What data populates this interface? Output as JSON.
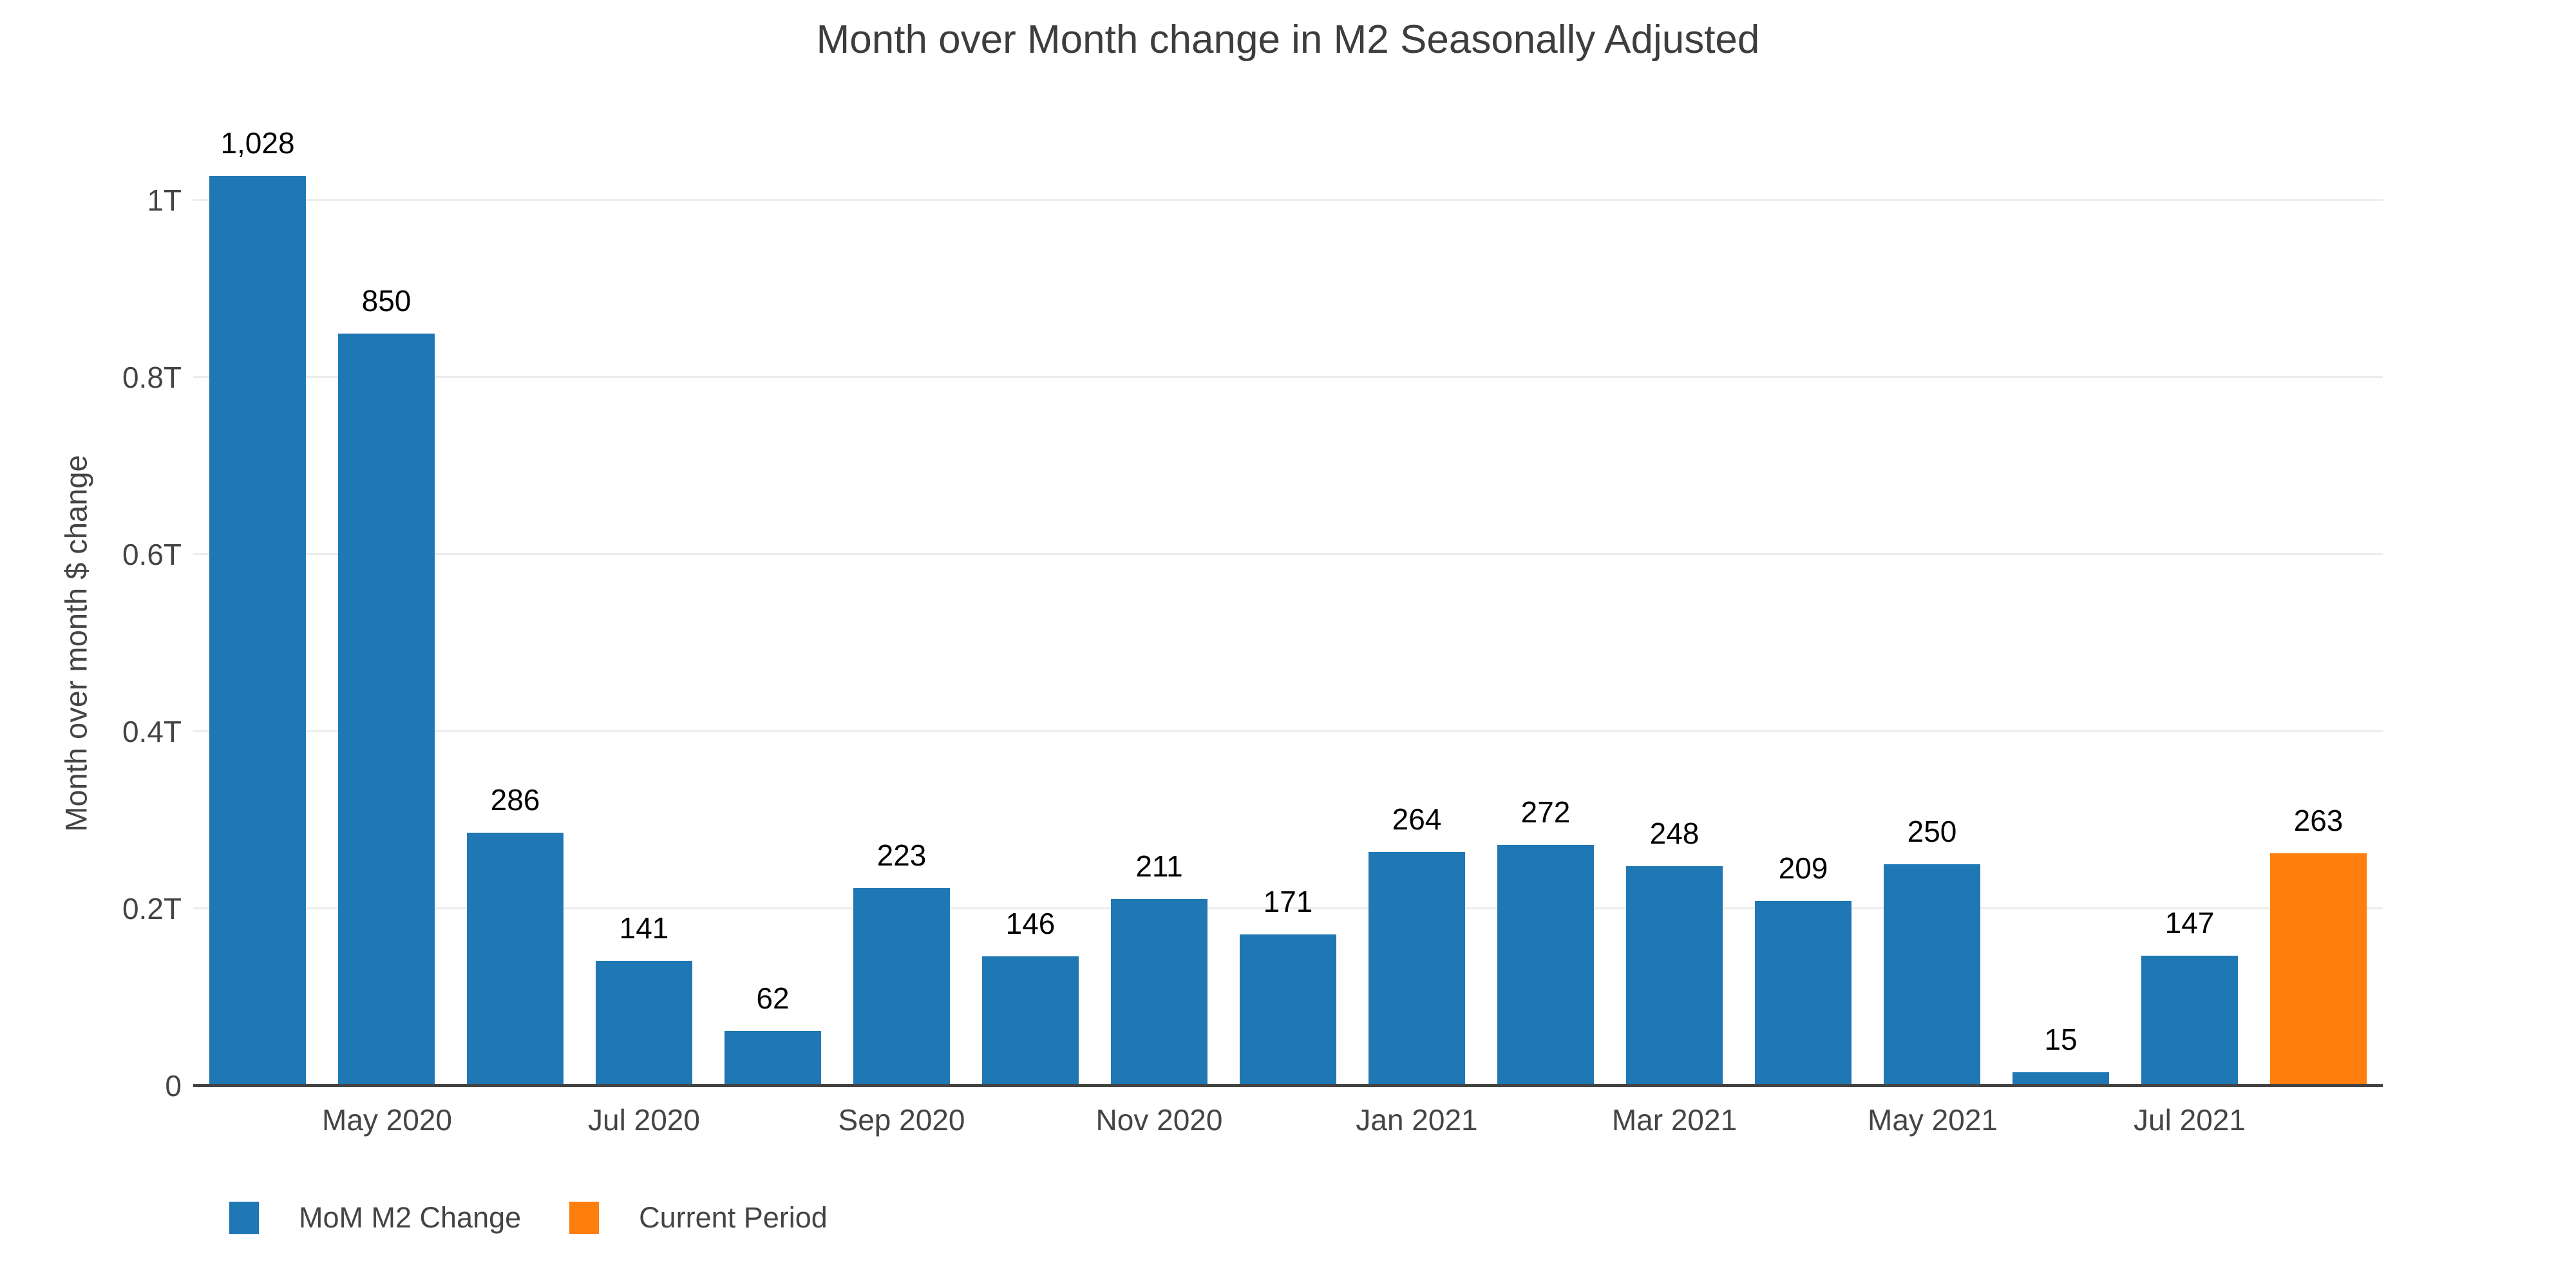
{
  "chart_data": {
    "type": "bar",
    "title": "Month over Month change in M2 Seasonally Adjusted",
    "ylabel": "Month over month $ change",
    "xlabel": "",
    "units": "billions of dollars (bar labels), trillions (y axis)",
    "values_billions": [
      1028,
      850,
      286,
      141,
      62,
      223,
      146,
      211,
      171,
      264,
      272,
      248,
      209,
      250,
      15,
      147,
      263
    ],
    "bar_labels": [
      "1,028",
      "850",
      "286",
      "141",
      "62",
      "223",
      "146",
      "211",
      "171",
      "264",
      "272",
      "248",
      "209",
      "250",
      "15",
      "147",
      "263"
    ],
    "x_tick_labels": [
      "",
      "May 2020",
      "",
      "Jul 2020",
      "",
      "Sep 2020",
      "",
      "Nov 2020",
      "",
      "Jan 2021",
      "",
      "Mar 2021",
      "",
      "May 2021",
      "",
      "Jul 2021",
      ""
    ],
    "y_ticks": [
      {
        "value": 0,
        "label": "0"
      },
      {
        "value": 200,
        "label": "0.2T"
      },
      {
        "value": 400,
        "label": "0.4T"
      },
      {
        "value": 600,
        "label": "0.6T"
      },
      {
        "value": 800,
        "label": "0.8T"
      },
      {
        "value": 1000,
        "label": "1T"
      }
    ],
    "ylim_billions": [
      0,
      1052
    ],
    "current_period_index": 16,
    "grid": true,
    "legend_position": "bottom-left",
    "colors": {
      "bar": "#1f77b4",
      "current": "#ff7f0e",
      "gridline": "#ececec",
      "axis_line": "#444444",
      "tick_label": "#444444",
      "bar_label": "#000000",
      "title": "#3d3d3d"
    },
    "legend": [
      {
        "label": "MoM M2 Change",
        "color": "#1f77b4"
      },
      {
        "label": "Current Period",
        "color": "#ff7f0e"
      }
    ]
  }
}
